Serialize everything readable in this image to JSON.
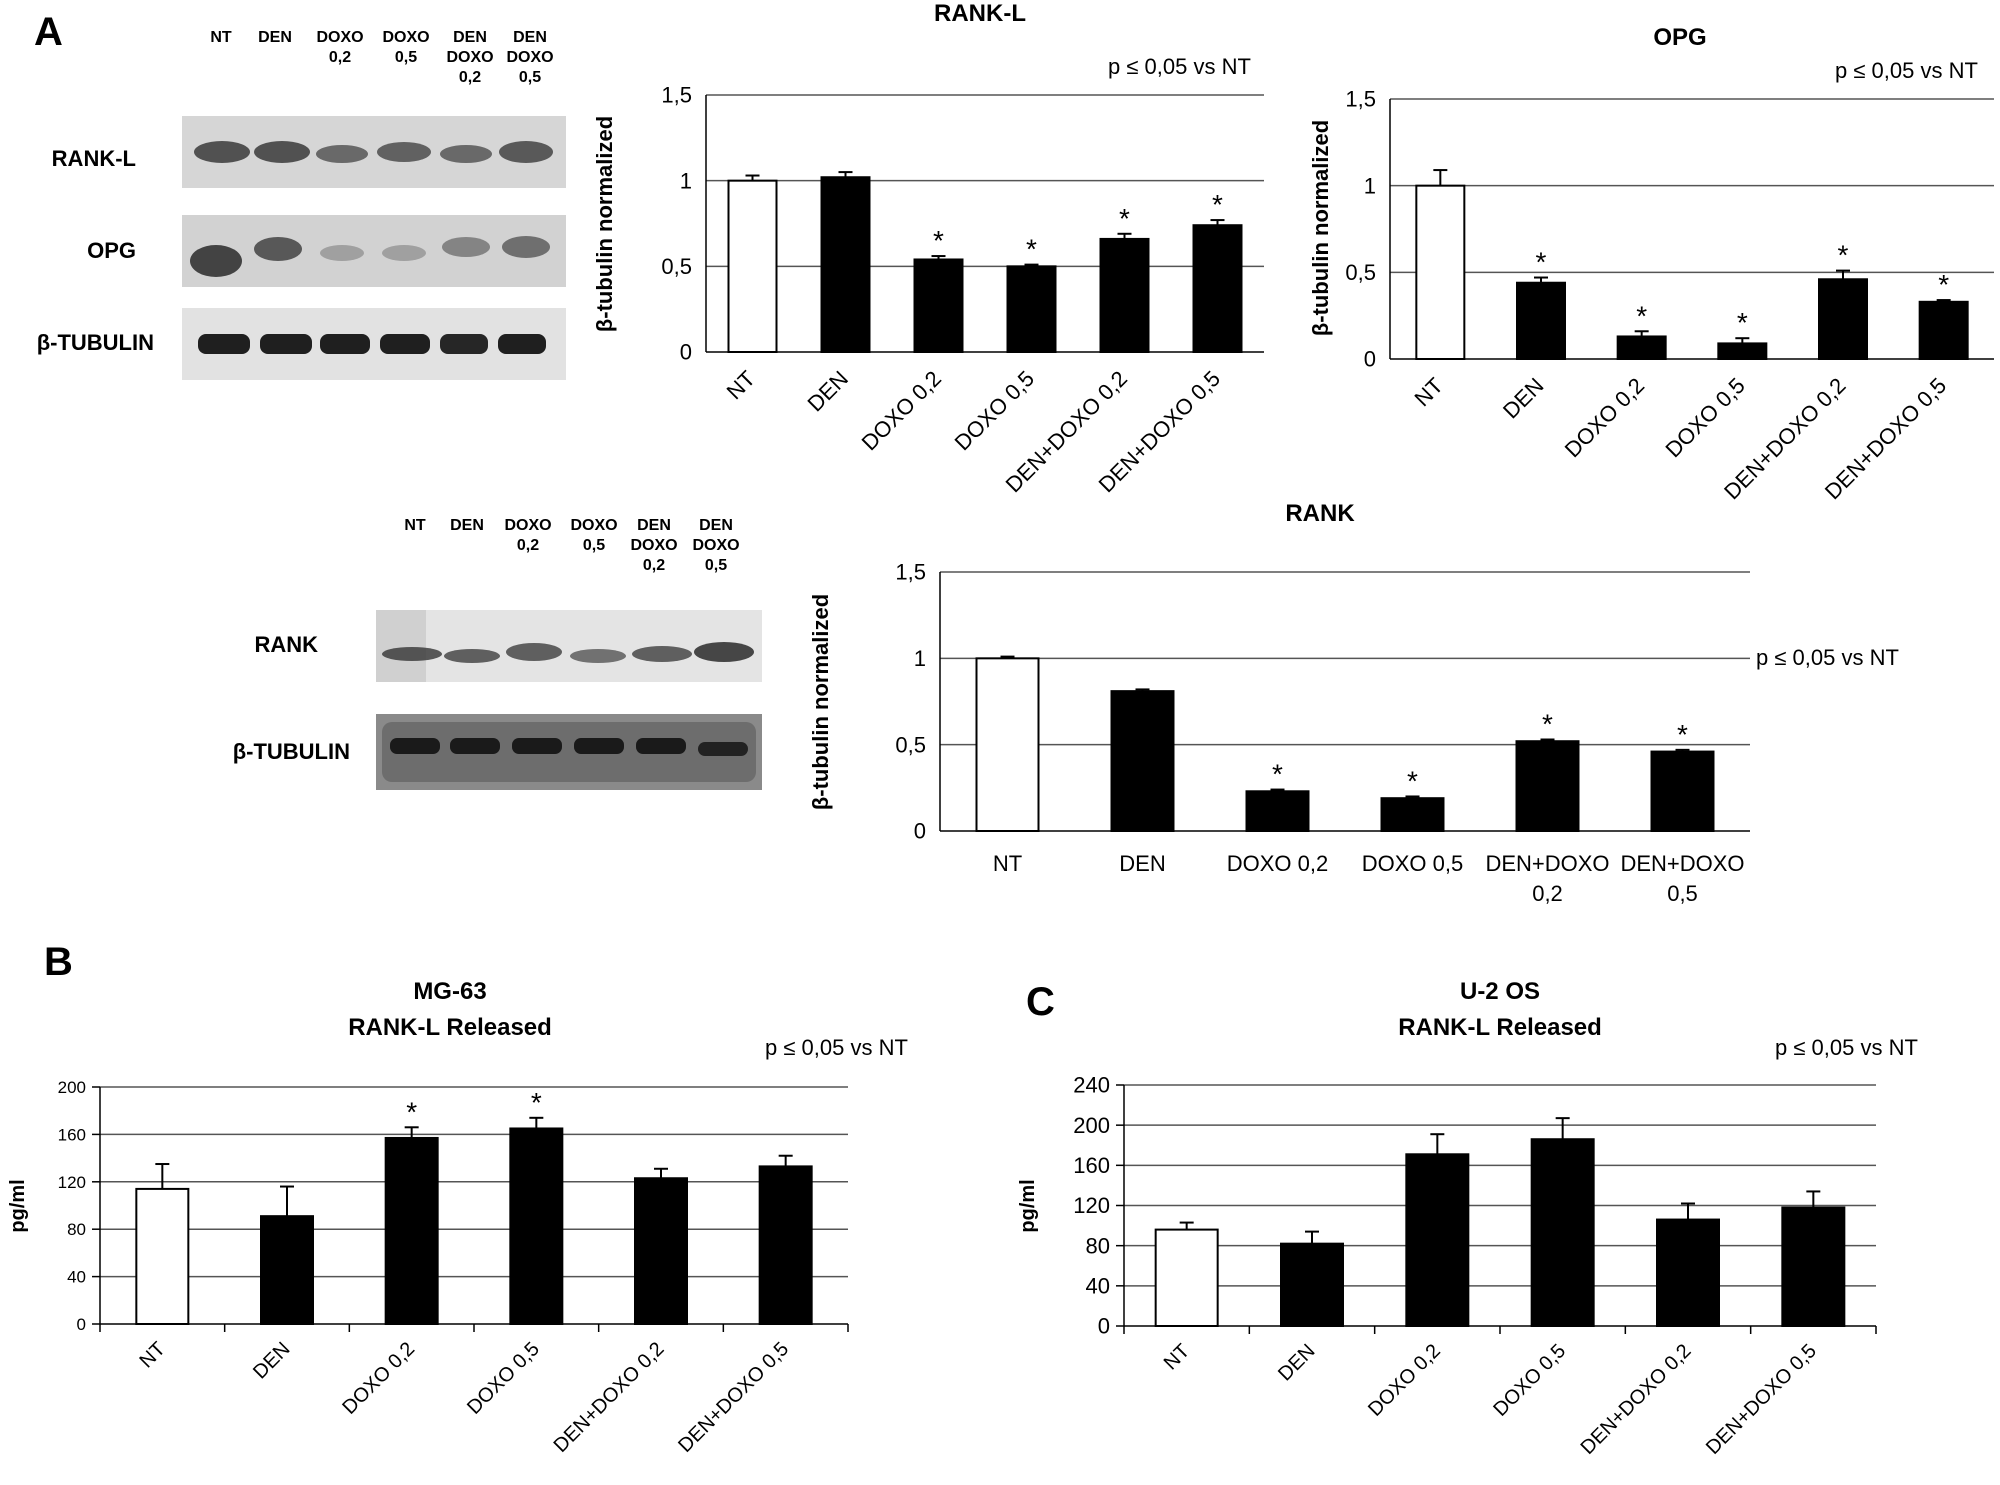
{
  "panels": {
    "a": "A",
    "b": "B",
    "c": "C"
  },
  "p_note": "p ≤ 0,05 vs NT",
  "blot_top": {
    "lanes": [
      [
        "NT"
      ],
      [
        "DEN"
      ],
      [
        "DOXO",
        "0,2"
      ],
      [
        "DOXO",
        "0,5"
      ],
      [
        "DEN",
        "DOXO",
        "0,2"
      ],
      [
        "DEN",
        "DOXO",
        "0,5"
      ]
    ],
    "rows": [
      "RANK-L",
      "OPG",
      "β-TUBULIN"
    ]
  },
  "blot_bottom": {
    "lanes": [
      [
        "NT"
      ],
      [
        "DEN"
      ],
      [
        "DOXO",
        "0,2"
      ],
      [
        "DOXO",
        "0,5"
      ],
      [
        "DEN",
        "DOXO",
        "0,2"
      ],
      [
        "DEN",
        "DOXO",
        "0,5"
      ]
    ],
    "rows": [
      "RANK",
      "β-TUBULIN"
    ]
  },
  "chart_data": [
    {
      "id": "rankl",
      "type": "bar",
      "title": "RANK-L",
      "ylabel": "β-tubulin normalized",
      "xlabel": "",
      "categories": [
        "NT",
        "DEN",
        "DOXO 0,2",
        "DOXO 0,5",
        "DEN+DOXO 0,2",
        "DEN+DOXO 0,5"
      ],
      "values": [
        1.0,
        1.02,
        0.54,
        0.5,
        0.66,
        0.74
      ],
      "errors": [
        0.03,
        0.03,
        0.02,
        0.01,
        0.03,
        0.03
      ],
      "significant": [
        false,
        false,
        true,
        true,
        true,
        true
      ],
      "bar_colors": [
        "#ffffff",
        "#000000",
        "#000000",
        "#000000",
        "#000000",
        "#000000"
      ],
      "ylim": [
        0,
        1.5
      ],
      "yticks": [
        "0",
        "0,5",
        "1",
        "1,5"
      ],
      "grid": true,
      "xtick_rotation": "rotated -45"
    },
    {
      "id": "opg",
      "type": "bar",
      "title": "OPG",
      "ylabel": "β-tubulin normalized",
      "xlabel": "",
      "categories": [
        "NT",
        "DEN",
        "DOXO 0,2",
        "DOXO 0,5",
        "DEN+DOXO 0,2",
        "DEN+DOXO 0,5"
      ],
      "values": [
        1.0,
        0.44,
        0.13,
        0.09,
        0.46,
        0.33
      ],
      "errors": [
        0.09,
        0.03,
        0.03,
        0.03,
        0.05,
        0.01
      ],
      "significant": [
        false,
        true,
        true,
        true,
        true,
        true
      ],
      "bar_colors": [
        "#ffffff",
        "#000000",
        "#000000",
        "#000000",
        "#000000",
        "#000000"
      ],
      "ylim": [
        0,
        1.5
      ],
      "yticks": [
        "0",
        "0,5",
        "1",
        "1,5"
      ],
      "grid": true,
      "xtick_rotation": "rotated -45"
    },
    {
      "id": "rank",
      "type": "bar",
      "title": "RANK",
      "ylabel": "β-tubulin normalized",
      "xlabel": "",
      "categories": [
        "NT",
        "DEN",
        "DOXO 0,2",
        "DOXO 0,5",
        "DEN+DOXO 0,2",
        "DEN+DOXO 0,5"
      ],
      "category_lines": [
        [
          "NT"
        ],
        [
          "DEN"
        ],
        [
          "DOXO 0,2"
        ],
        [
          "DOXO 0,5"
        ],
        [
          "DEN+DOXO",
          "0,2"
        ],
        [
          "DEN+DOXO",
          "0,5"
        ]
      ],
      "values": [
        1.0,
        0.81,
        0.23,
        0.19,
        0.52,
        0.46
      ],
      "errors": [
        0.01,
        0.01,
        0.01,
        0.01,
        0.01,
        0.01
      ],
      "significant": [
        false,
        false,
        true,
        true,
        true,
        true
      ],
      "bar_colors": [
        "#ffffff",
        "#000000",
        "#000000",
        "#000000",
        "#000000",
        "#000000"
      ],
      "ylim": [
        0,
        1.5
      ],
      "yticks": [
        "0",
        "0,5",
        "1",
        "1,5"
      ],
      "grid": true,
      "xtick_rotation": "horizontal"
    },
    {
      "id": "mg63",
      "type": "bar",
      "title": "MG-63",
      "subtitle": "RANK-L Released",
      "ylabel": "pg/ml",
      "xlabel": "",
      "categories": [
        "NT",
        "DEN",
        "DOXO 0,2",
        "DOXO 0,5",
        "DEN+DOXO 0,2",
        "DEN+DOXO 0,5"
      ],
      "values": [
        114,
        91,
        157,
        165,
        123,
        133
      ],
      "errors": [
        21,
        25,
        9,
        9,
        8,
        9
      ],
      "significant": [
        false,
        false,
        true,
        true,
        false,
        false
      ],
      "bar_colors": [
        "#ffffff",
        "#000000",
        "#000000",
        "#000000",
        "#000000",
        "#000000"
      ],
      "ylim": [
        0,
        200
      ],
      "yticks": [
        "0",
        "40",
        "80",
        "120",
        "160",
        "200"
      ],
      "grid": true,
      "xtick_rotation": "rotated -45"
    },
    {
      "id": "u2os",
      "type": "bar",
      "title": "U-2 OS",
      "subtitle": "RANK-L Released",
      "ylabel": "pg/ml",
      "xlabel": "",
      "categories": [
        "NT",
        "DEN",
        "DOXO 0,2",
        "DOXO 0,5",
        "DEN+DOXO 0,2",
        "DEN+DOXO 0,5"
      ],
      "values": [
        96,
        82,
        171,
        186,
        106,
        118
      ],
      "errors": [
        7,
        12,
        20,
        21,
        16,
        16
      ],
      "significant": [
        false,
        false,
        false,
        false,
        false,
        false
      ],
      "bar_colors": [
        "#ffffff",
        "#000000",
        "#000000",
        "#000000",
        "#000000",
        "#000000"
      ],
      "ylim": [
        0,
        240
      ],
      "yticks": [
        "0",
        "40",
        "80",
        "120",
        "160",
        "200",
        "240"
      ],
      "grid": true,
      "xtick_rotation": "rotated -45"
    }
  ]
}
